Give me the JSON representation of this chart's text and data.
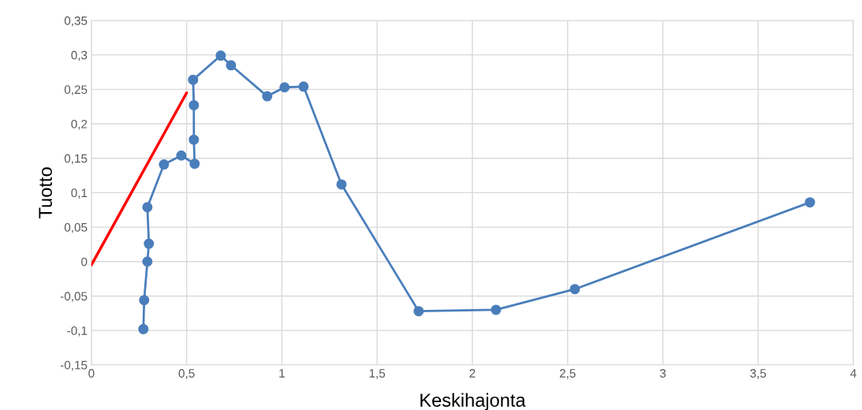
{
  "chart_data": {
    "type": "line",
    "xlabel": "Keskihajonta",
    "ylabel": "Tuotto",
    "grid": true,
    "legend": false,
    "xlim": [
      0,
      4
    ],
    "ylim": [
      -0.15,
      0.35
    ],
    "xticks": [
      0,
      {
        "value": 0.5,
        "label": "0,5"
      },
      1,
      {
        "value": 1.5,
        "label": "1,5"
      },
      2,
      {
        "value": 2.5,
        "label": "2,5"
      },
      3,
      {
        "value": 3.5,
        "label": "3,5"
      },
      4
    ],
    "yticks": [
      {
        "value": -0.15,
        "label": "-0,15"
      },
      {
        "value": -0.1,
        "label": "-0,1"
      },
      {
        "value": -0.05,
        "label": "-0,05"
      },
      0,
      {
        "value": 0.05,
        "label": "0,05"
      },
      {
        "value": 0.1,
        "label": "0,1"
      },
      {
        "value": 0.15,
        "label": "0,15"
      },
      {
        "value": 0.2,
        "label": "0,2"
      },
      {
        "value": 0.25,
        "label": "0,25"
      },
      {
        "value": 0.3,
        "label": "0,3"
      },
      {
        "value": 0.35,
        "label": "0,35"
      }
    ],
    "series": [
      {
        "color": "#4a7ebb",
        "marker": "circle",
        "line_style": "solid",
        "x": [
          0.273,
          0.277,
          0.294,
          0.302,
          0.294,
          0.381,
          0.472,
          0.542,
          0.538,
          0.538,
          0.534,
          0.679,
          0.733,
          0.923,
          1.014,
          1.114,
          1.313,
          1.718,
          2.124,
          2.538,
          3.772
        ],
        "values": [
          -0.098,
          -0.056,
          0.0,
          0.026,
          0.079,
          0.141,
          0.154,
          0.142,
          0.177,
          0.227,
          0.264,
          0.299,
          0.285,
          0.24,
          0.253,
          0.254,
          0.112,
          -0.072,
          -0.07,
          -0.04,
          0.086
        ]
      },
      {
        "color": "#ff0000",
        "marker": "none",
        "line_style": "solid",
        "x": [
          0,
          0.5
        ],
        "values": [
          -0.005,
          0.245
        ]
      }
    ]
  }
}
